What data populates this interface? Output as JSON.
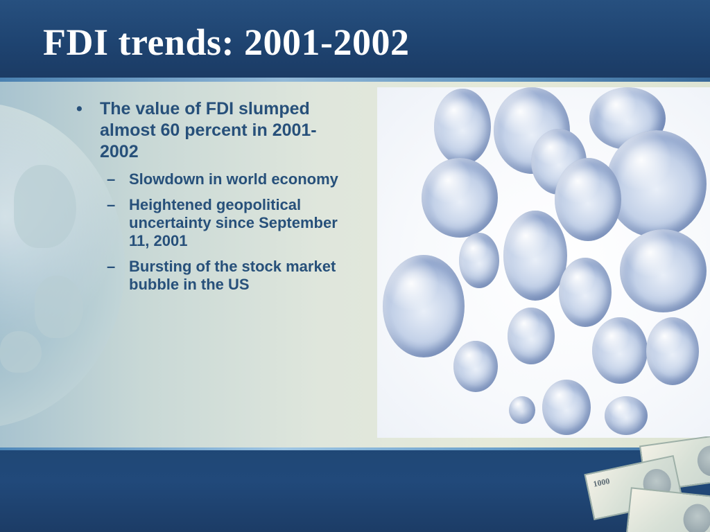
{
  "slide": {
    "title": "FDI trends: 2001-2002",
    "bullet_char": "•",
    "dash_char": "–",
    "bullets": [
      {
        "text": "The value of FDI slumped almost 60 percent in 2001-2002",
        "sub_bullets": [
          "Slowdown in world economy",
          "Heightened geopolitical uncertainty since September 11, 2001",
          "Bursting of the stock market bubble in the US"
        ]
      }
    ]
  },
  "decor": {
    "banknote_label": "1000"
  },
  "colors": {
    "title_band": "#1e4370",
    "bottom_band": "#21497a",
    "bullet_text": "#27507a",
    "title_text": "#ffffff"
  }
}
